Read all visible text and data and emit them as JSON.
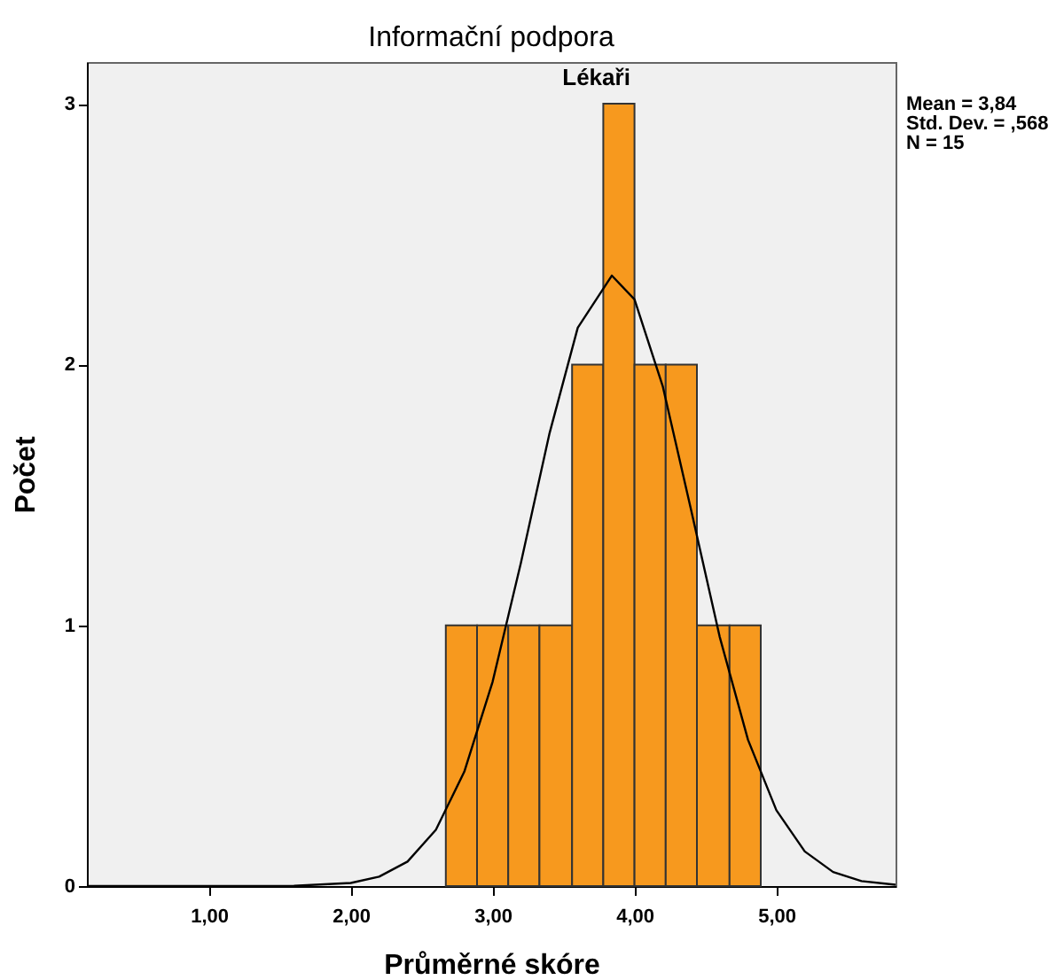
{
  "chart_data": {
    "type": "histogram",
    "title": "Informační podpora",
    "subtitle": "Lékaři",
    "xlabel": "Průměrné skóre",
    "ylabel": "Počet",
    "bins": [
      2.67,
      2.89,
      3.11,
      3.33,
      3.56,
      3.78,
      4.0,
      4.22,
      4.44,
      4.67,
      4.89
    ],
    "series": [
      {
        "color": "#f7991e",
        "values": [
          1,
          1,
          1,
          1,
          2,
          3,
          2,
          2,
          1,
          1
        ]
      },
      {
        "type": "line",
        "color": "#000000",
        "x": [
          0.14,
          1.0,
          1.6,
          2.0,
          2.2,
          2.4,
          2.6,
          2.8,
          3.0,
          3.2,
          3.4,
          3.6,
          3.84,
          4.0,
          4.2,
          4.4,
          4.6,
          4.8,
          5.0,
          5.2,
          5.4,
          5.6,
          5.84
        ],
        "values": [
          0,
          0,
          0.001,
          0.012,
          0.036,
          0.094,
          0.216,
          0.438,
          0.784,
          1.241,
          1.734,
          2.141,
          2.341,
          2.25,
          1.915,
          1.44,
          0.957,
          0.561,
          0.291,
          0.133,
          0.054,
          0.019,
          0.005
        ]
      }
    ],
    "xlim": [
      0.14,
      5.84
    ],
    "xticks": [
      {
        "value": 1,
        "label": "1,00"
      },
      {
        "value": 2,
        "label": "2,00"
      },
      {
        "value": 3,
        "label": "3,00"
      },
      {
        "value": 4,
        "label": "4,00"
      },
      {
        "value": 5,
        "label": "5,00"
      }
    ],
    "ylim": [
      0,
      3.16
    ],
    "yticks": [
      0,
      1,
      2,
      3
    ],
    "annotations": [
      "Mean = 3,84",
      "Std. Dev. = ,568",
      "N = 15"
    ]
  }
}
